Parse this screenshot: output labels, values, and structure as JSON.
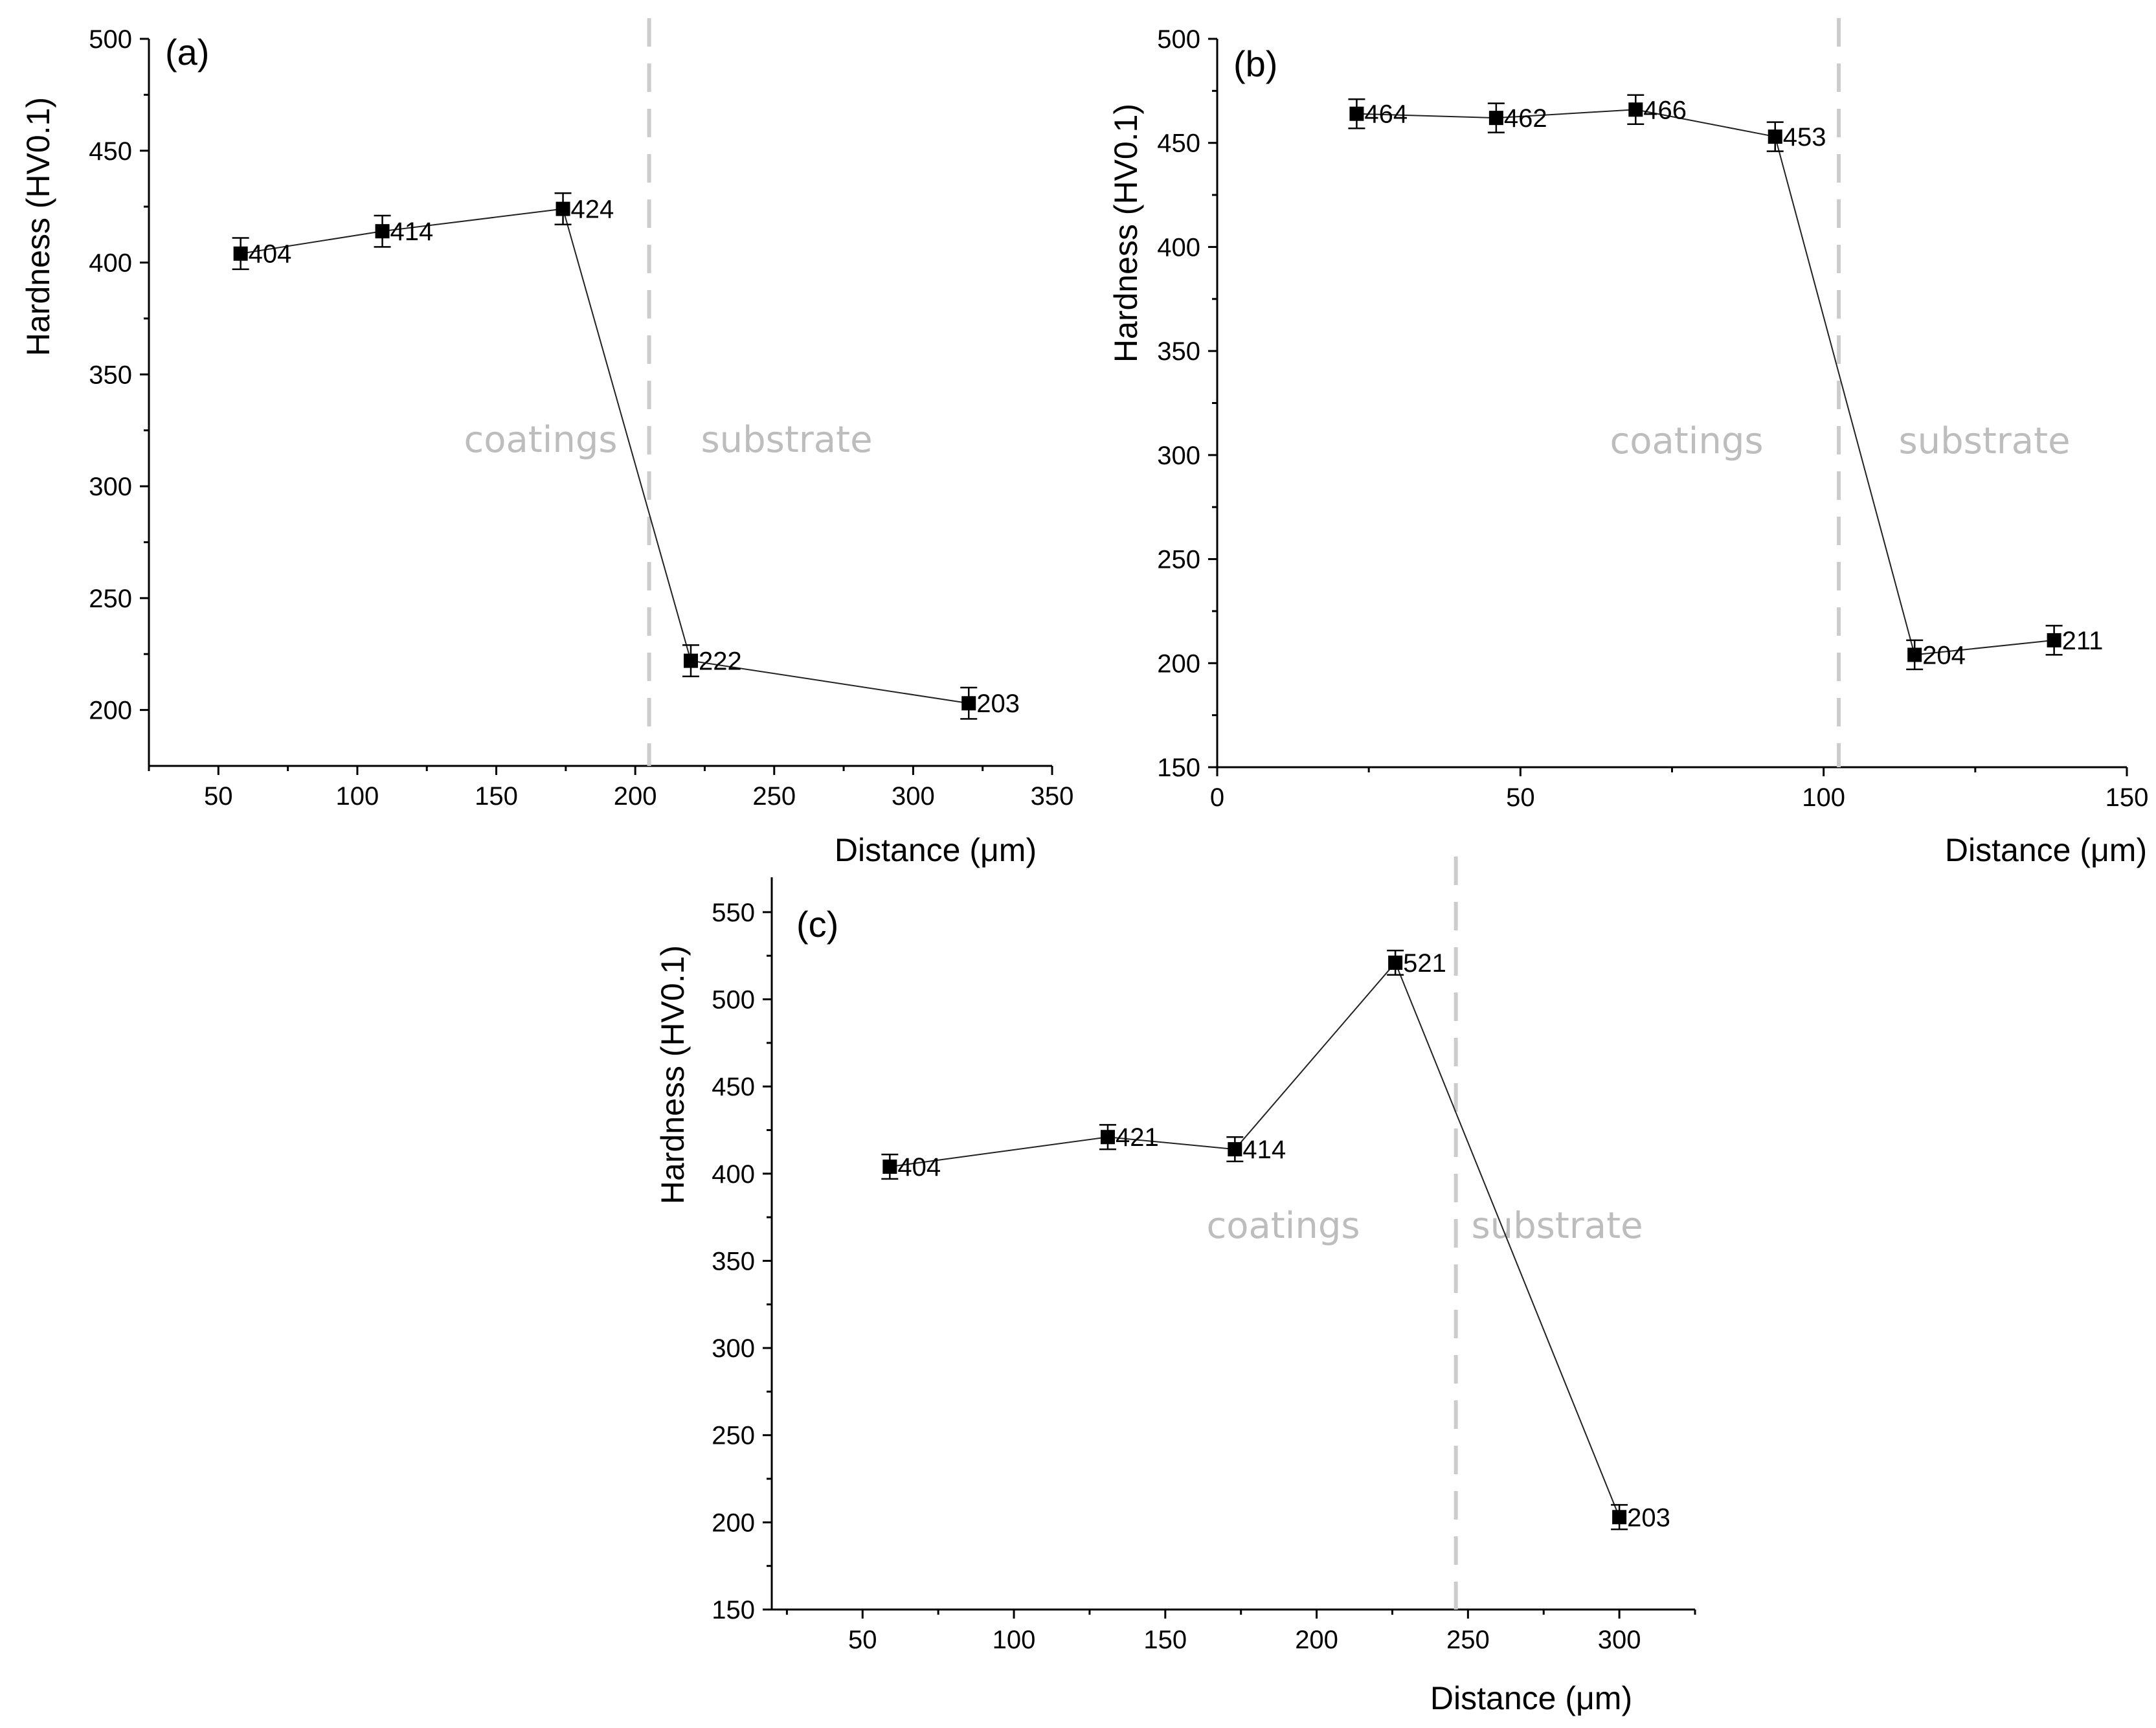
{
  "chart_data": [
    {
      "type": "line",
      "panel": "(a)",
      "xlabel": "Distance (μm)",
      "ylabel": "Hardness (HV0.1)",
      "xlim": [
        25,
        350
      ],
      "ylim": [
        175,
        500
      ],
      "xticks": [
        50,
        100,
        150,
        200,
        250,
        300,
        350
      ],
      "yticks": [
        200,
        250,
        300,
        350,
        400,
        450,
        500
      ],
      "boundary_x": 205,
      "regions": {
        "left": "coatings",
        "right": "substrate"
      },
      "series": [
        {
          "name": "Hardness",
          "x": [
            58,
            109,
            174,
            220,
            320
          ],
          "y": [
            404,
            414,
            424,
            222,
            203
          ],
          "error": [
            7,
            7,
            7,
            7,
            7
          ],
          "labels": [
            "404",
            "414",
            "424",
            "222",
            "203"
          ]
        }
      ]
    },
    {
      "type": "line",
      "panel": "(b)",
      "xlabel": "Distance (μm)",
      "ylabel": "Hardness (HV0.1)",
      "xlim": [
        0,
        150
      ],
      "ylim": [
        150,
        500
      ],
      "xticks": [
        0,
        50,
        100,
        150
      ],
      "yticks": [
        150,
        200,
        250,
        300,
        350,
        400,
        450,
        500
      ],
      "boundary_x": 102.5,
      "regions": {
        "left": "coatings",
        "right": "substrate"
      },
      "series": [
        {
          "name": "Hardness",
          "x": [
            23,
            46,
            69,
            92,
            115,
            138
          ],
          "y": [
            464,
            462,
            466,
            453,
            204,
            211
          ],
          "error": [
            7,
            7,
            7,
            7,
            7,
            7
          ],
          "labels": [
            "464",
            "462",
            "466",
            "453",
            "204",
            "211"
          ]
        }
      ]
    },
    {
      "type": "line",
      "panel": "(c)",
      "xlabel": "Distance (μm)",
      "ylabel": "Hardness (HV0.1)",
      "xlim": [
        20,
        325
      ],
      "ylim": [
        150,
        570
      ],
      "xticks": [
        50,
        100,
        150,
        200,
        250,
        300
      ],
      "yticks": [
        150,
        200,
        250,
        300,
        350,
        400,
        450,
        500,
        550
      ],
      "boundary_x": 246,
      "regions": {
        "left": "coatings",
        "right": "substrate"
      },
      "series": [
        {
          "name": "Hardness",
          "x": [
            59,
            131,
            173,
            226,
            300
          ],
          "y": [
            404,
            421,
            414,
            521,
            203
          ],
          "error": [
            7,
            7,
            7,
            7,
            7
          ],
          "labels": [
            "404",
            "421",
            "414",
            "521",
            "203"
          ]
        }
      ]
    }
  ]
}
